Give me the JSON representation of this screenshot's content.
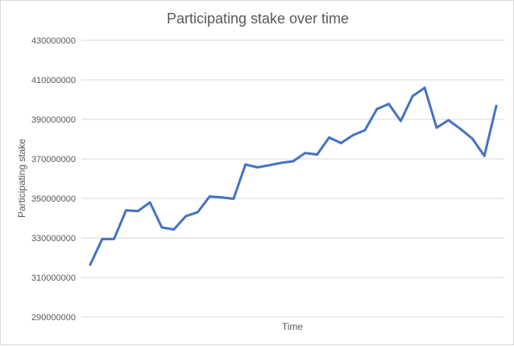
{
  "chart_data": {
    "type": "line",
    "title": "Participating stake over time",
    "xlabel": "Time",
    "ylabel": "Participating stake",
    "ylim": [
      290000000,
      430000000
    ],
    "yticks": [
      290000000,
      310000000,
      330000000,
      350000000,
      370000000,
      390000000,
      410000000,
      430000000
    ],
    "ytick_labels": [
      "290000000",
      "310000000",
      "330000000",
      "350000000",
      "370000000",
      "390000000",
      "410000000",
      "430000000"
    ],
    "grid": true,
    "legend": "none",
    "series": [
      {
        "color": "#4472c4",
        "values": [
          316500000,
          329400000,
          329500000,
          344000000,
          343600000,
          348000000,
          335300000,
          334300000,
          341000000,
          343000000,
          351000000,
          350500000,
          349800000,
          367200000,
          365700000,
          366800000,
          368000000,
          368800000,
          373000000,
          372200000,
          380800000,
          378000000,
          382000000,
          384500000,
          395200000,
          397800000,
          389200000,
          401800000,
          406000000,
          385800000,
          389600000,
          385200000,
          380200000,
          371500000,
          396800000
        ]
      }
    ]
  }
}
